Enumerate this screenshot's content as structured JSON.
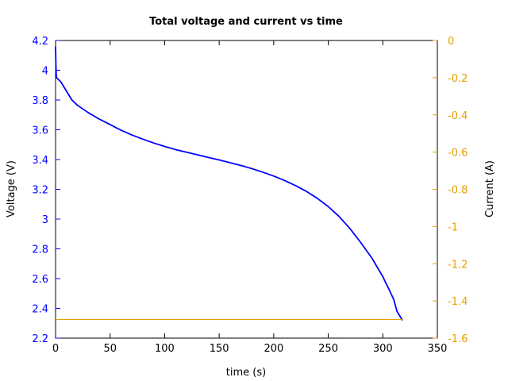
{
  "chart_data": {
    "type": "line",
    "title": "Total voltage and current vs time",
    "xlabel": "time (s)",
    "ylabel_left": "Voltage (V)",
    "ylabel_right": "Current (A)",
    "xlim": [
      0,
      350
    ],
    "ylim_left": [
      2.2,
      4.2
    ],
    "ylim_right": [
      -1.6,
      0
    ],
    "x_ticks": [
      "0",
      "50",
      "100",
      "150",
      "200",
      "250",
      "300",
      "350"
    ],
    "y_ticks_left": [
      "2.2",
      "2.4",
      "2.6",
      "2.8",
      "3",
      "3.2",
      "3.4",
      "3.6",
      "3.8",
      "4",
      "4.2"
    ],
    "y_ticks_right": [
      "-1.6",
      "-1.4",
      "-1.2",
      "-1",
      "-0.8",
      "-0.6",
      "-0.4",
      "-0.2",
      "0"
    ],
    "grid": false,
    "colors": {
      "voltage": "#0000ff",
      "current": "#e69f00",
      "axis": "#000000"
    },
    "series": [
      {
        "axis": "left",
        "x": [
          0,
          0.3,
          0.6,
          1,
          5,
          10,
          15,
          20,
          30,
          40,
          50,
          60,
          70,
          80,
          90,
          100,
          110,
          120,
          130,
          140,
          150,
          160,
          170,
          180,
          190,
          200,
          210,
          220,
          230,
          240,
          250,
          260,
          270,
          280,
          290,
          300,
          305,
          310,
          313,
          318
        ],
        "y": [
          4.16,
          4.04,
          3.97,
          3.95,
          3.92,
          3.86,
          3.8,
          3.765,
          3.715,
          3.672,
          3.635,
          3.597,
          3.565,
          3.537,
          3.511,
          3.488,
          3.467,
          3.449,
          3.432,
          3.414,
          3.397,
          3.379,
          3.36,
          3.339,
          3.315,
          3.289,
          3.259,
          3.225,
          3.186,
          3.139,
          3.084,
          3.017,
          2.935,
          2.84,
          2.738,
          2.613,
          2.538,
          2.46,
          2.38,
          2.32
        ]
      },
      {
        "axis": "right",
        "x": [
          0,
          318
        ],
        "y": [
          -1.5,
          -1.5
        ]
      }
    ]
  }
}
